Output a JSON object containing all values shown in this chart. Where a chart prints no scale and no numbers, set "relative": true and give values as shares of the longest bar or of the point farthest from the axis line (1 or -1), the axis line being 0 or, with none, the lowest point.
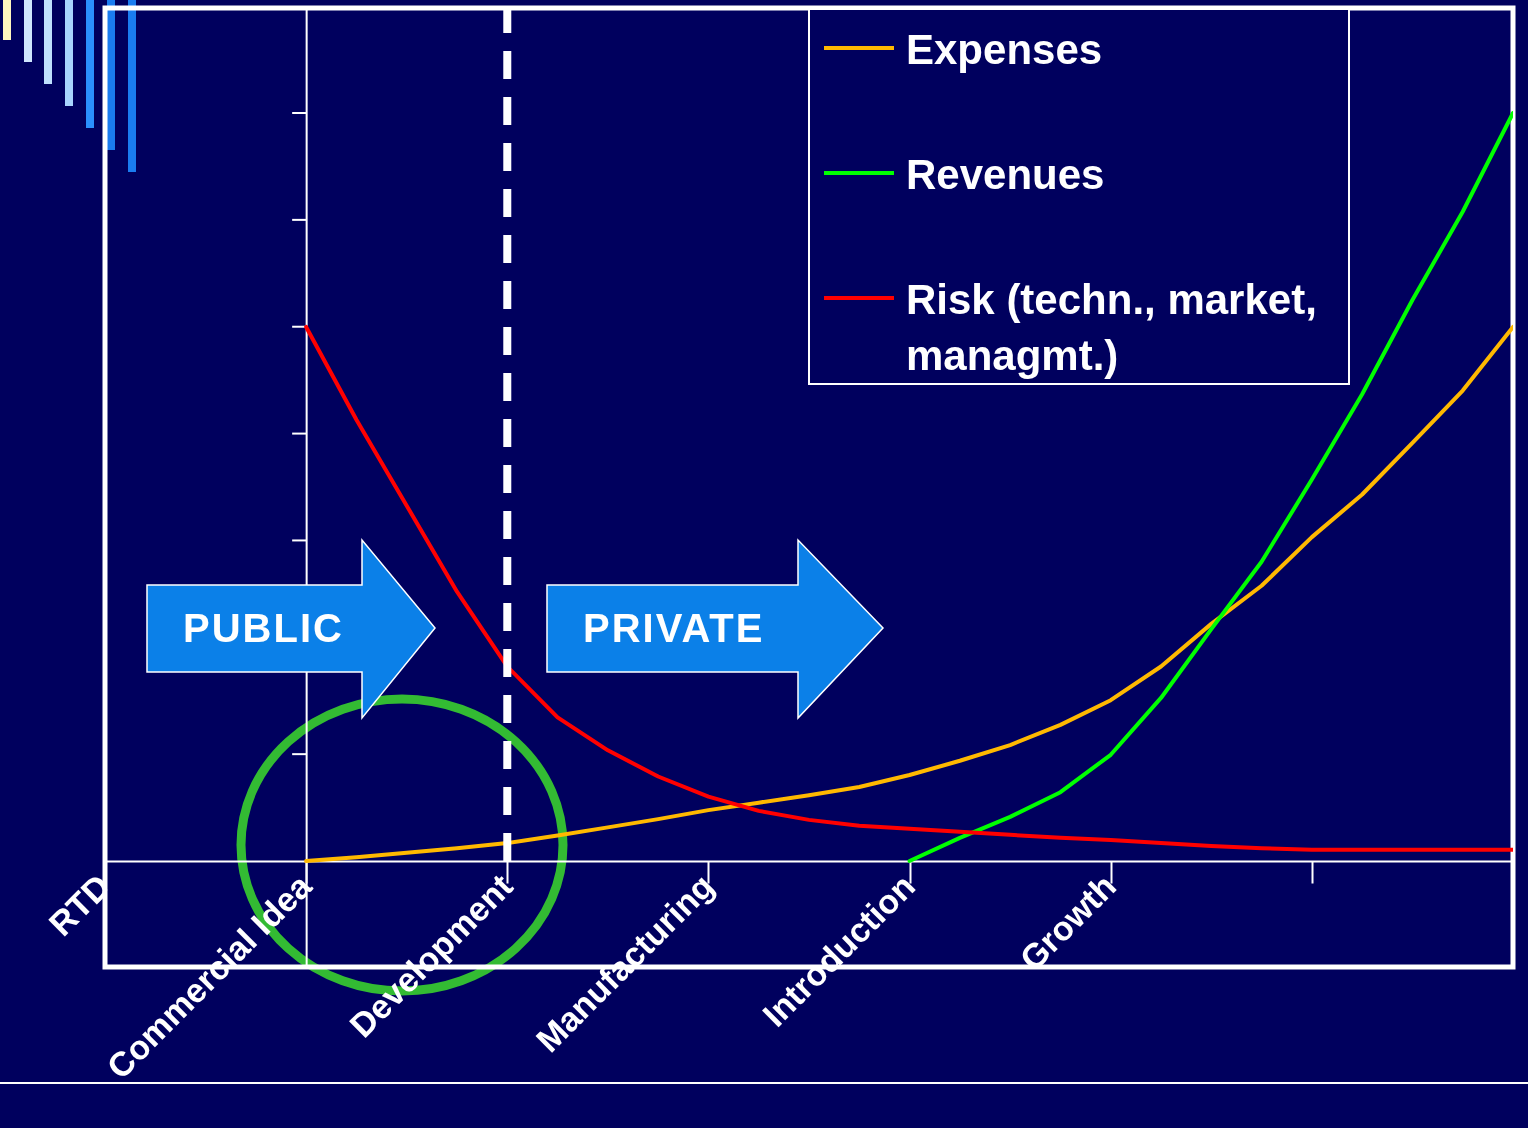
{
  "chart_data": {
    "type": "line",
    "relative": true,
    "legend": "top right",
    "categories": [
      "RTD",
      null,
      null,
      null,
      "Commercial Idea",
      null,
      null,
      null,
      "Development",
      null,
      null,
      null,
      "Manufacturing",
      null,
      null,
      null,
      "Introduction",
      null,
      null,
      null,
      "Growth",
      null,
      null,
      null,
      null,
      null,
      null,
      null,
      null
    ],
    "series": [
      {
        "name": "Expenses",
        "color": "#ffb900",
        "values": [
          null,
          null,
          null,
          null,
          0,
          0.005,
          0.011,
          0.017,
          0.024,
          0.034,
          0.045,
          0.056,
          0.068,
          0.078,
          0.088,
          0.099,
          0.115,
          0.134,
          0.155,
          0.182,
          0.215,
          0.26,
          0.317,
          0.368,
          0.433,
          0.49,
          0.559,
          0.629,
          0.714
        ]
      },
      {
        "name": "Revenues",
        "color": "#00ff00",
        "values": [
          null,
          null,
          null,
          null,
          null,
          null,
          null,
          null,
          null,
          null,
          null,
          null,
          null,
          null,
          null,
          null,
          0,
          0.031,
          0.059,
          0.092,
          0.142,
          0.218,
          0.31,
          0.4,
          0.51,
          0.624,
          0.75,
          0.868,
          1.0
        ]
      },
      {
        "name": "Risk (techn., market, managmt.)",
        "color": "#ff0000",
        "values": [
          null,
          null,
          null,
          null,
          0.714,
          0.59,
          0.475,
          0.36,
          0.26,
          0.192,
          0.148,
          0.113,
          0.086,
          0.067,
          0.055,
          0.047,
          0.043,
          0.039,
          0.035,
          0.031,
          0.028,
          0.024,
          0.02,
          0.017,
          0.015,
          0.015,
          0.015,
          0.015,
          0.015
        ]
      }
    ],
    "ref_lines": [
      {
        "axis": "x",
        "value": "Development",
        "color": "#ffffff",
        "line_style": "dashed"
      }
    ],
    "annotations": [
      "PUBLIC",
      "PRIVATE"
    ]
  }
}
